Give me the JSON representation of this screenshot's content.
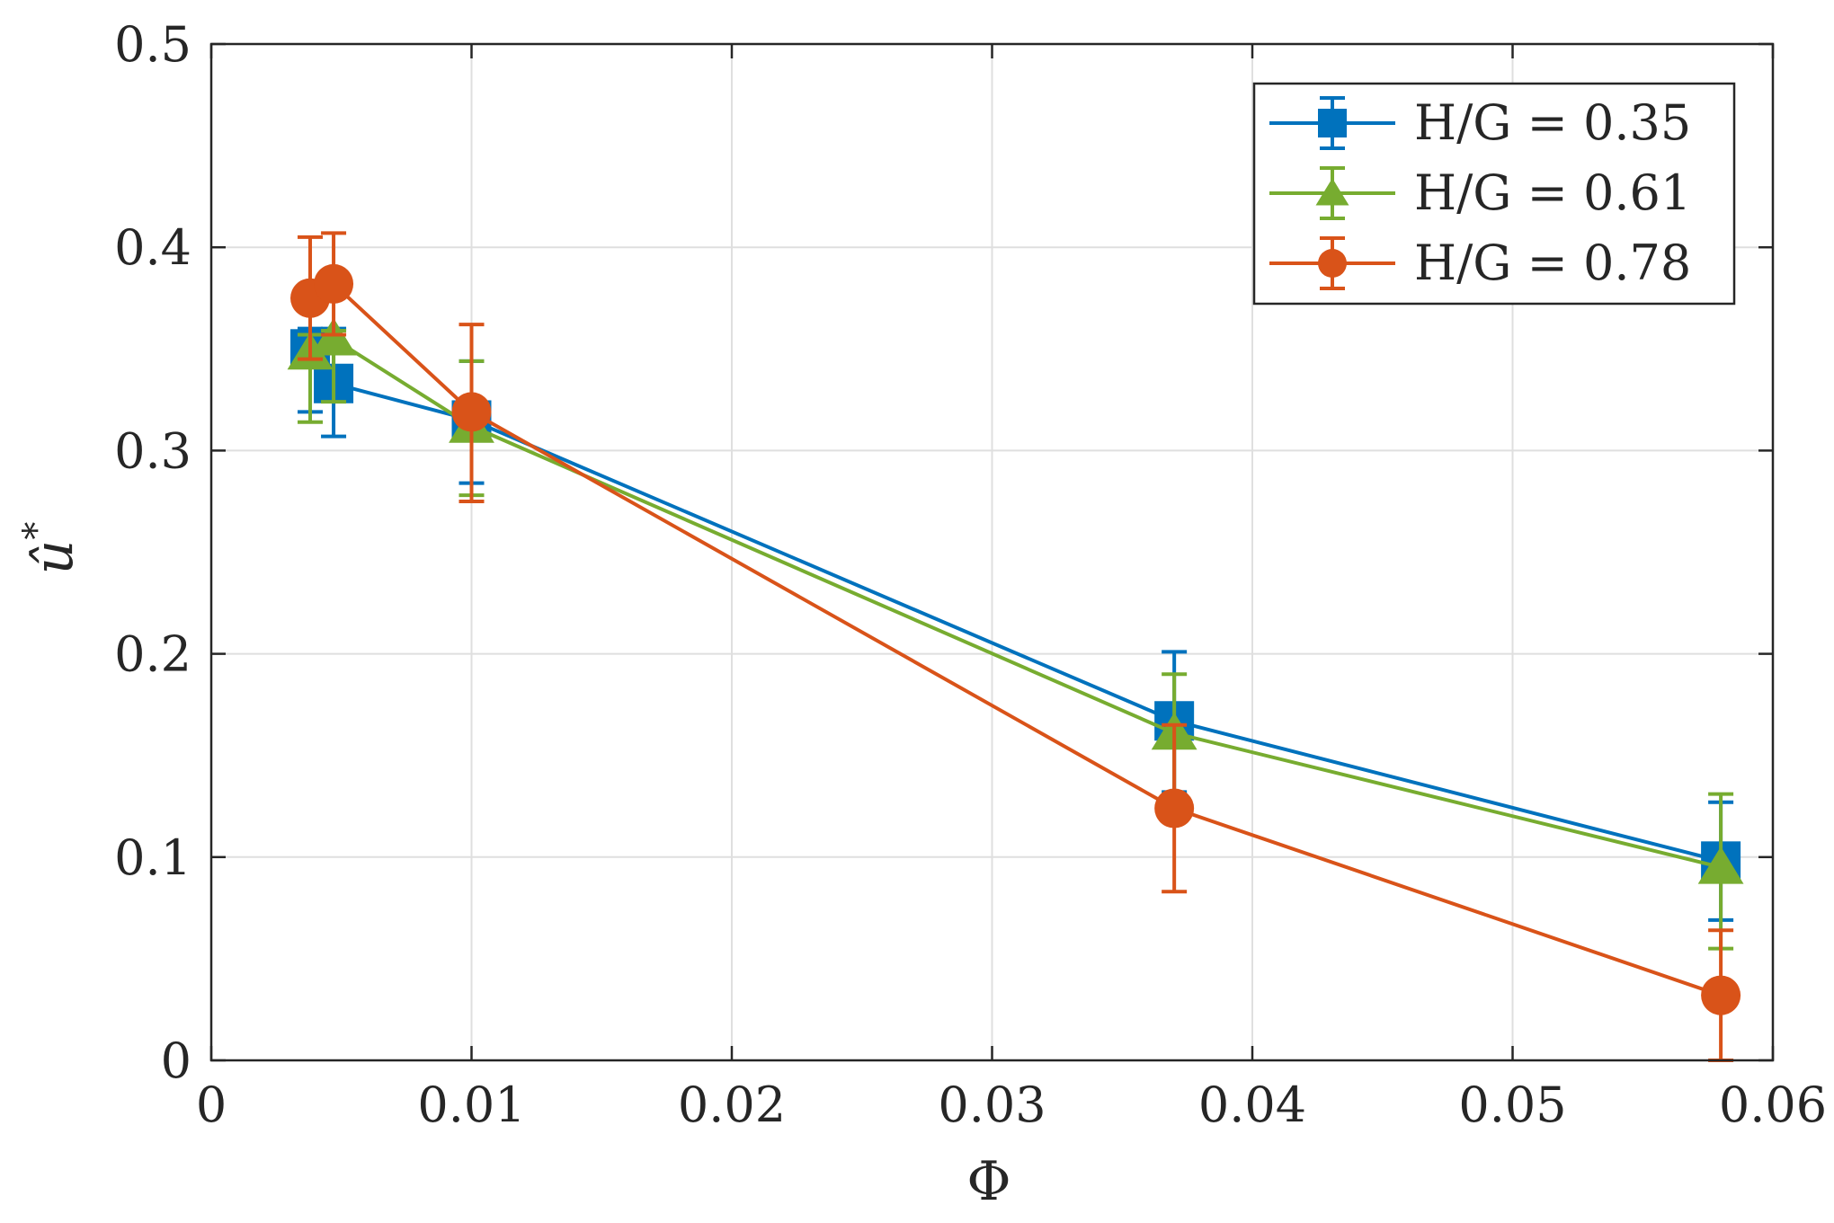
{
  "chart_data": {
    "type": "line",
    "title": "",
    "xlabel": "Φ",
    "ylabel": "û*",
    "ylabel_base": "û",
    "ylabel_sup": "*",
    "xlim": [
      0,
      0.06
    ],
    "ylim": [
      0,
      0.5
    ],
    "xticks": [
      0,
      0.01,
      0.02,
      0.03,
      0.04,
      0.05,
      0.06
    ],
    "xtick_labels": [
      "0",
      "0.01",
      "0.02",
      "0.03",
      "0.04",
      "0.05",
      "0.06"
    ],
    "yticks": [
      0,
      0.1,
      0.2,
      0.3,
      0.4,
      0.5
    ],
    "ytick_labels": [
      "0",
      "0.1",
      "0.2",
      "0.3",
      "0.4",
      "0.5"
    ],
    "grid": true,
    "legend_position": "top-right",
    "series": [
      {
        "name": "H/G = 0.35",
        "marker": "square",
        "color": "#0072BD",
        "x": [
          0.0038,
          0.0047,
          0.01,
          0.037,
          0.058
        ],
        "y": [
          0.35,
          0.333,
          0.315,
          0.167,
          0.098
        ],
        "err_low": [
          0.031,
          0.026,
          0.031,
          0.035,
          0.029
        ],
        "err_high": [
          0.01,
          0.027,
          0.029,
          0.034,
          0.029
        ]
      },
      {
        "name": "H/G = 0.61",
        "marker": "triangle",
        "color": "#77AC30",
        "x": [
          0.0038,
          0.0047,
          0.01,
          0.037,
          0.058
        ],
        "y": [
          0.348,
          0.355,
          0.312,
          0.161,
          0.095
        ],
        "err_low": [
          0.034,
          0.031,
          0.034,
          0.031,
          0.04
        ],
        "err_high": [
          0.009,
          0.004,
          0.032,
          0.029,
          0.036
        ]
      },
      {
        "name": "H/G = 0.78",
        "marker": "circle",
        "color": "#D95319",
        "x": [
          0.0038,
          0.0047,
          0.01,
          0.037,
          0.058
        ],
        "y": [
          0.375,
          0.382,
          0.319,
          0.124,
          0.032
        ],
        "err_low": [
          0.03,
          0.025,
          0.044,
          0.041,
          0.032
        ],
        "err_high": [
          0.03,
          0.025,
          0.043,
          0.041,
          0.032
        ]
      }
    ]
  }
}
